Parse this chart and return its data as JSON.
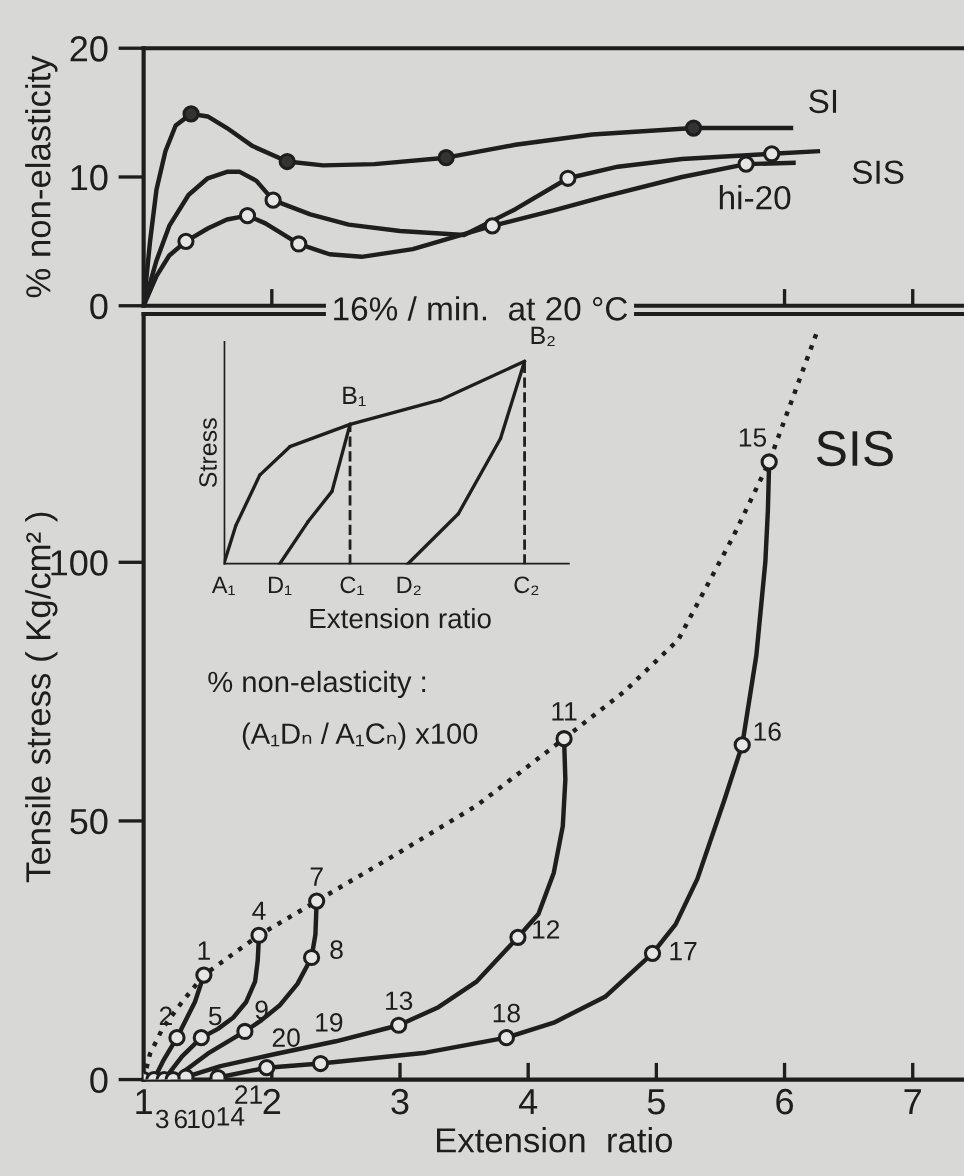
{
  "chart_data": [
    {
      "type": "line",
      "ylabel": "% non-elasticity",
      "xlim": [
        1,
        7.4
      ],
      "ylim": [
        0,
        20
      ],
      "xticks": [
        {
          "value": 2,
          "label": null
        },
        {
          "value": 6,
          "label": null
        },
        {
          "value": 7,
          "label": null
        }
      ],
      "yticks": [
        0,
        10,
        20
      ],
      "tick_labels": "y",
      "series": [
        {
          "name": "SI",
          "color": "#1e1e1e",
          "line_style": "solid",
          "marker": "none",
          "x": [
            1,
            1.05,
            1.1,
            1.17,
            1.25,
            1.37,
            1.5,
            1.65,
            1.85,
            2.12,
            2.4,
            2.8,
            3.36,
            3.9,
            4.5,
            5.29,
            6.05
          ],
          "values": [
            0,
            5,
            9,
            12,
            14,
            14.9,
            14.7,
            13.8,
            12.4,
            11.2,
            10.9,
            11.0,
            11.5,
            12.5,
            13.3,
            13.8,
            13.8
          ]
        },
        {
          "name": "SIS",
          "color": "#1e1e1e",
          "line_style": "solid",
          "marker": "none",
          "x": [
            1,
            1.1,
            1.2,
            1.35,
            1.5,
            1.65,
            1.75,
            1.88,
            2.01,
            2.3,
            2.6,
            3.0,
            3.5,
            3.9,
            4.31,
            4.7,
            5.2,
            5.9,
            6.26
          ],
          "values": [
            0,
            3.5,
            6.2,
            8.6,
            9.9,
            10.4,
            10.4,
            9.7,
            8.2,
            7.1,
            6.3,
            5.8,
            5.5,
            7.5,
            9.9,
            10.8,
            11.4,
            11.8,
            12
          ]
        },
        {
          "name": "hi-20",
          "color": "#1e1e1e",
          "line_style": "solid",
          "marker": "none",
          "x": [
            1,
            1.1,
            1.2,
            1.33,
            1.5,
            1.65,
            1.81,
            1.95,
            2.21,
            2.45,
            2.7,
            3.1,
            3.72,
            4.2,
            4.6,
            5.2,
            5.7,
            6.07
          ],
          "values": [
            0,
            2.3,
            3.9,
            5.0,
            6.0,
            6.7,
            7.0,
            6.4,
            4.8,
            4.0,
            3.8,
            4.4,
            6.2,
            7.4,
            8.5,
            10.0,
            11.0,
            11.1
          ]
        },
        {
          "type": "scatter",
          "color": "#333333",
          "marker": "circle",
          "x": [
            1.37,
            2.12,
            3.36,
            5.29
          ],
          "values": [
            14.9,
            11.2,
            11.5,
            13.8
          ]
        },
        {
          "type": "scatter",
          "color": "#e6e6e6",
          "marker": "circle",
          "x": [
            2.01,
            4.31,
            5.9,
            1.33,
            1.81,
            2.21,
            3.72,
            5.7
          ],
          "values": [
            8.2,
            9.9,
            11.8,
            5.0,
            7.0,
            4.8,
            6.2,
            11.0
          ]
        }
      ]
    },
    {
      "type": "line",
      "title": "16% / min.  at 20 °C",
      "xlabel": "Extension  ratio",
      "ylabel": "Tensile stress ( Kg/cm² )",
      "xlim": [
        1,
        7.4
      ],
      "ylim": [
        0,
        148
      ],
      "xticks": [
        1,
        2,
        3,
        4,
        5,
        6,
        7
      ],
      "yticks": [
        0,
        50,
        100
      ],
      "series": [
        {
          "color": "#1e1e1e",
          "line_style": "dotted",
          "marker": "none",
          "x": [
            1,
            1.05,
            1.15,
            1.3,
            1.47,
            1.9,
            2.35,
            3.0,
            3.6,
            4.28,
            4.75,
            5.17,
            5.6,
            5.88,
            6.26
          ],
          "values": [
            0,
            5,
            10,
            15,
            20.2,
            27.9,
            34.5,
            44,
            53,
            65.9,
            75,
            85,
            105,
            119.4,
            145
          ]
        },
        {
          "color": "#1e1e1e",
          "line_style": "solid",
          "marker": "none",
          "x": [
            1.47,
            1.4,
            1.26,
            1.15,
            1.08
          ],
          "values": [
            20.2,
            15,
            8.1,
            3.5,
            0
          ]
        },
        {
          "color": "#1e1e1e",
          "line_style": "solid",
          "marker": "none",
          "x": [
            1.9,
            1.89,
            1.87,
            1.8,
            1.7,
            1.58,
            1.45,
            1.3,
            1.16
          ],
          "values": [
            27.9,
            23,
            19,
            15,
            12,
            9.8,
            8.1,
            4.5,
            0
          ]
        },
        {
          "color": "#1e1e1e",
          "line_style": "solid",
          "marker": "none",
          "x": [
            2.35,
            2.34,
            2.31,
            2.2,
            2.06,
            1.92,
            1.79,
            1.5,
            1.23
          ],
          "values": [
            34.5,
            28,
            23.6,
            18.5,
            14.3,
            11.5,
            9.3,
            5,
            0
          ]
        },
        {
          "color": "#1e1e1e",
          "line_style": "solid",
          "marker": "none",
          "x": [
            4.28,
            4.29,
            4.27,
            4.2,
            4.08,
            3.92,
            3.6,
            3.3,
            2.99,
            2.5,
            2.0,
            1.6,
            1.33
          ],
          "values": [
            65.9,
            58,
            49,
            40,
            32,
            27.5,
            19,
            14,
            10.5,
            7.4,
            4.8,
            2.6,
            0.5
          ]
        },
        {
          "color": "#1e1e1e",
          "line_style": "solid",
          "marker": "none",
          "x": [
            5.88,
            5.87,
            5.85,
            5.78,
            5.67,
            5.53,
            5.32,
            5.15,
            4.97,
            4.6,
            4.2,
            3.83,
            3.2,
            2.38,
            1.96,
            1.58
          ],
          "values": [
            119.4,
            110,
            100,
            82,
            64.7,
            54,
            38.8,
            30,
            24.4,
            16,
            11,
            8.1,
            5.2,
            3.1,
            2.3,
            0.4
          ]
        },
        {
          "type": "scatter",
          "color": "#e6e6e6",
          "marker": "circle",
          "x": [
            1,
            1.47,
            1.26,
            1.08,
            1.9,
            1.45,
            1.16,
            2.35,
            2.31,
            1.79,
            1.23,
            4.28,
            3.92,
            2.99,
            1.33,
            5.88,
            5.67,
            4.97,
            3.83,
            2.38,
            1.96,
            1.58
          ],
          "values": [
            0,
            20.2,
            8.1,
            0,
            27.9,
            8.1,
            0,
            34.5,
            23.6,
            9.3,
            0,
            65.9,
            27.5,
            10.5,
            0.5,
            119.4,
            64.7,
            24.4,
            8.1,
            3.1,
            2.3,
            0.4
          ]
        }
      ],
      "annotations": [
        {
          "text": "1",
          "x": 1.47,
          "y": 20.2
        },
        {
          "text": "2",
          "x": 1.26,
          "y": 8.1
        },
        {
          "text": "3",
          "x": 1.08,
          "y": 0
        },
        {
          "text": "4",
          "x": 1.9,
          "y": 27.9
        },
        {
          "text": "5",
          "x": 1.45,
          "y": 8.1
        },
        {
          "text": "6",
          "x": 1.16,
          "y": 0
        },
        {
          "text": "7",
          "x": 2.35,
          "y": 34.5
        },
        {
          "text": "8",
          "x": 2.31,
          "y": 23.6
        },
        {
          "text": "9",
          "x": 1.79,
          "y": 9.3
        },
        {
          "text": "10",
          "x": 1.23,
          "y": 0
        },
        {
          "text": "11",
          "x": 4.28,
          "y": 65.9
        },
        {
          "text": "12",
          "x": 3.92,
          "y": 27.5
        },
        {
          "text": "13",
          "x": 2.99,
          "y": 10.5
        },
        {
          "text": "14",
          "x": 1.33,
          "y": 0.5
        },
        {
          "text": "15",
          "x": 5.88,
          "y": 119.4
        },
        {
          "text": "16",
          "x": 5.67,
          "y": 64.7
        },
        {
          "text": "17",
          "x": 4.97,
          "y": 24.4
        },
        {
          "text": "18",
          "x": 3.83,
          "y": 8.1
        },
        {
          "text": "19",
          "x": 2.38,
          "y": 3.1
        },
        {
          "text": "20",
          "x": 1.96,
          "y": 2.3
        },
        {
          "text": "21",
          "x": 1.58,
          "y": 0.4
        },
        "SIS",
        "% non-elasticity :",
        "(A₁Dₙ / A₁Cₙ) x100",
        "Stress",
        "Extension ratio",
        "A₁",
        "D₁",
        "C₁",
        "D₂",
        "C₂",
        "B₁",
        "B₂"
      ]
    }
  ]
}
